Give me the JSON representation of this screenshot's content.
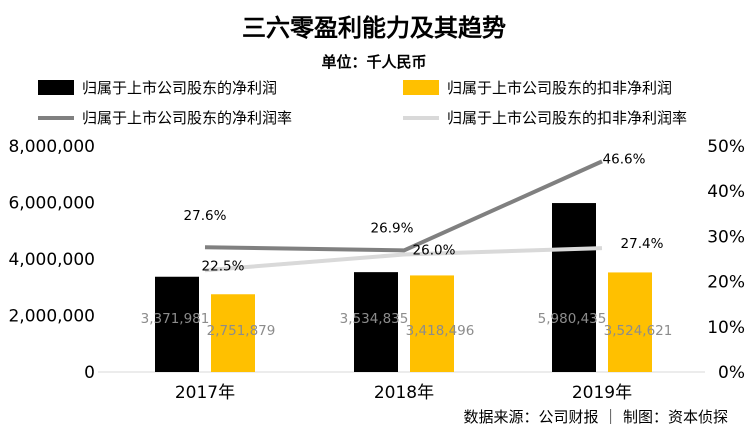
{
  "chart_data": {
    "type": "bar",
    "title": "三六零盈利能力及其趋势",
    "subtitle": "单位：千人民币",
    "categories": [
      "2017年",
      "2018年",
      "2019年"
    ],
    "series": [
      {
        "name": "归属于上市公司股东的净利润",
        "kind": "bar",
        "axis": "left",
        "color": "#000000",
        "values": [
          3371981,
          3534835,
          5980435
        ],
        "labels": [
          "3,371,981",
          "3,534,835",
          "5,980,435"
        ]
      },
      {
        "name": "归属于上市公司股东的扣非净利润",
        "kind": "bar",
        "axis": "left",
        "color": "#FFC000",
        "values": [
          2751879,
          3418496,
          3524621
        ],
        "labels": [
          "2,751,879",
          "3,418,496",
          "3,524,621"
        ]
      },
      {
        "name": "归属于上市公司股东的净利润率",
        "kind": "line",
        "axis": "right",
        "color": "#808080",
        "values": [
          27.6,
          26.9,
          46.6
        ],
        "labels": [
          "27.6%",
          "26.9%",
          "46.6%"
        ]
      },
      {
        "name": "归属于上市公司股东的扣非净利润率",
        "kind": "line",
        "axis": "right",
        "color": "#D9D9D9",
        "values": [
          22.5,
          26.0,
          27.4
        ],
        "labels": [
          "22.5%",
          "26.0%",
          "27.4%"
        ]
      }
    ],
    "y_left": {
      "ylim": [
        0,
        8000000
      ],
      "ticks": [
        "0",
        "2,000,000",
        "4,000,000",
        "6,000,000",
        "8,000,000"
      ]
    },
    "y_right": {
      "ylim": [
        0,
        50
      ],
      "ticks": [
        "0%",
        "10%",
        "20%",
        "30%",
        "40%",
        "50%"
      ]
    },
    "grid": false,
    "legend_position": "top"
  },
  "source": "数据来源：公司财报 ｜ 制图：资本侦探"
}
